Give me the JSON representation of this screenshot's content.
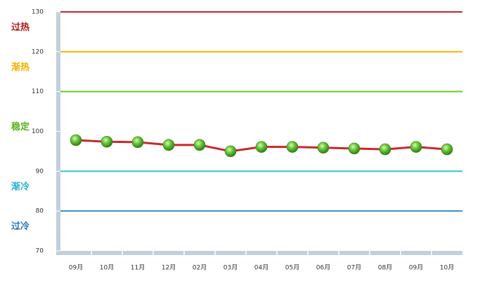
{
  "chart_data": {
    "type": "line",
    "categories": [
      "09月",
      "10月",
      "11月",
      "12月",
      "02月",
      "03月",
      "04月",
      "05月",
      "06月",
      "07月",
      "08月",
      "09月",
      "10月"
    ],
    "series": [
      {
        "color": "#c8282c",
        "marker_color": "#4caf2a",
        "values": [
          97.8,
          97.4,
          97.3,
          96.6,
          96.6,
          95.0,
          96.1,
          96.1,
          95.9,
          95.7,
          95.5,
          96.1,
          95.5
        ]
      }
    ],
    "ylim": [
      70,
      130
    ],
    "yticks": [
      70,
      80,
      90,
      100,
      110,
      120,
      130
    ],
    "reference_lines": [
      {
        "value": 130,
        "color": "#c0282a"
      },
      {
        "value": 120,
        "color": "#f5b400"
      },
      {
        "value": 110,
        "color": "#66cc22"
      },
      {
        "value": 90,
        "color": "#33c4cc"
      },
      {
        "value": 80,
        "color": "#3a8cc8"
      }
    ],
    "zones": [
      {
        "label": "过热",
        "color": "#b01818",
        "range": [
          120,
          130
        ]
      },
      {
        "label": "渐热",
        "color": "#f0b000",
        "range": [
          110,
          120
        ]
      },
      {
        "label": "稳定",
        "color": "#5ab21a",
        "range": [
          90,
          110
        ]
      },
      {
        "label": "渐冷",
        "color": "#22b0d0",
        "range": [
          80,
          90
        ]
      },
      {
        "label": "过冷",
        "color": "#2a78b8",
        "range": [
          70,
          80
        ]
      }
    ]
  }
}
